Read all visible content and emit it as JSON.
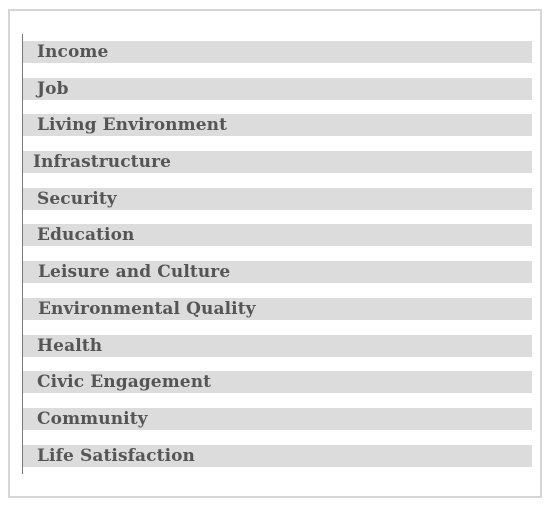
{
  "items": [
    {
      "label": "Income"
    },
    {
      "label": "Job"
    },
    {
      "label": "Living Environment"
    },
    {
      "label": "Infrastructure"
    },
    {
      "label": "Security"
    },
    {
      "label": "Education"
    },
    {
      "label": "Leisure and Culture"
    },
    {
      "label": "Environmental Quality"
    },
    {
      "label": "Health"
    },
    {
      "label": "Civic Engagement"
    },
    {
      "label": "Community"
    },
    {
      "label": "Life Satisfaction"
    }
  ],
  "colors": {
    "row_fill": "#dcdcdc",
    "text": "#555555",
    "axis": "#7a7a7a",
    "border": "#d6d6d6"
  }
}
